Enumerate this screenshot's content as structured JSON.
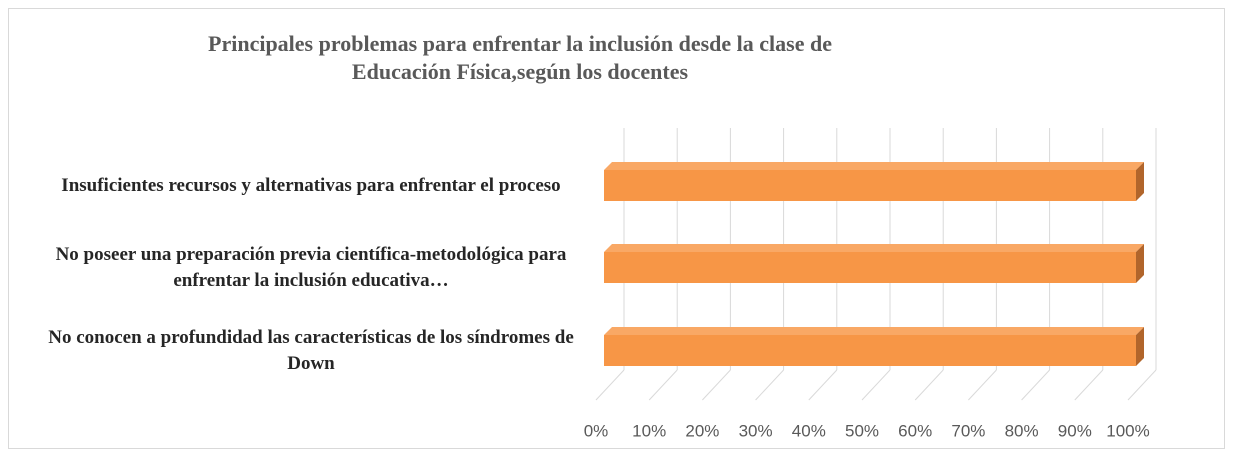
{
  "chart_data": {
    "type": "bar3d_horizontal",
    "title": "Principales problemas para enfrentar la inclusión desde la clase de Educación Física,según los docentes",
    "categories": [
      "Insuficientes recursos y alternativas para enfrentar el proceso",
      "No poseer una preparación previa científica-metodológica para enfrentar la inclusión educativa…",
      "No conocen a profundidad las características  de los síndromes de Down"
    ],
    "values": [
      100,
      100,
      100
    ],
    "color": "#f79646",
    "xlim": [
      0,
      100
    ],
    "xticks": [
      {
        "value": 0,
        "label": "0%"
      },
      {
        "value": 10,
        "label": "10%"
      },
      {
        "value": 20,
        "label": "20%"
      },
      {
        "value": 30,
        "label": "30%"
      },
      {
        "value": 40,
        "label": "40%"
      },
      {
        "value": 50,
        "label": "50%"
      },
      {
        "value": 60,
        "label": "60%"
      },
      {
        "value": 70,
        "label": "70%"
      },
      {
        "value": 80,
        "label": "80%"
      },
      {
        "value": 90,
        "label": "90%"
      },
      {
        "value": 100,
        "label": "100%"
      }
    ],
    "grid": true
  }
}
